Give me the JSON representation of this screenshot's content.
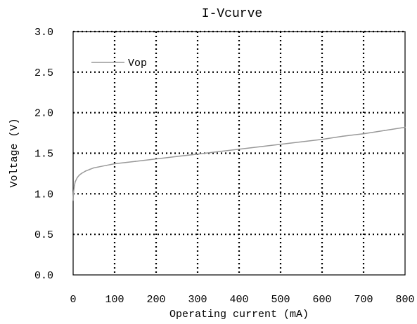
{
  "chart_data": {
    "type": "line",
    "title": "I-Vcurve",
    "xlabel": "Operating current (mA)",
    "ylabel": "Voltage (V)",
    "xlim": [
      0,
      800
    ],
    "ylim": [
      0,
      3.0
    ],
    "x_ticks": [
      0,
      100,
      200,
      300,
      400,
      500,
      600,
      700,
      800
    ],
    "y_ticks": [
      0.0,
      0.5,
      1.0,
      1.5,
      2.0,
      2.5,
      3.0
    ],
    "x_tick_labels": [
      "0",
      "100",
      "200",
      "300",
      "400",
      "500",
      "600",
      "700",
      "800"
    ],
    "y_tick_labels": [
      "0.0",
      "0.5",
      "1.0",
      "1.5",
      "2.0",
      "2.5",
      "3.0"
    ],
    "grid": true,
    "legend": "top-left",
    "series": [
      {
        "name": "Vop",
        "color": "#999999",
        "x": [
          0,
          1,
          3,
          5,
          10,
          15,
          20,
          30,
          40,
          50,
          60,
          80,
          100,
          150,
          200,
          250,
          300,
          350,
          400,
          450,
          500,
          550,
          600,
          650,
          700,
          750,
          800
        ],
        "y": [
          0.92,
          1.02,
          1.1,
          1.15,
          1.2,
          1.23,
          1.25,
          1.28,
          1.3,
          1.32,
          1.33,
          1.35,
          1.37,
          1.4,
          1.43,
          1.46,
          1.49,
          1.52,
          1.55,
          1.58,
          1.61,
          1.64,
          1.67,
          1.71,
          1.74,
          1.78,
          1.82
        ]
      }
    ]
  }
}
